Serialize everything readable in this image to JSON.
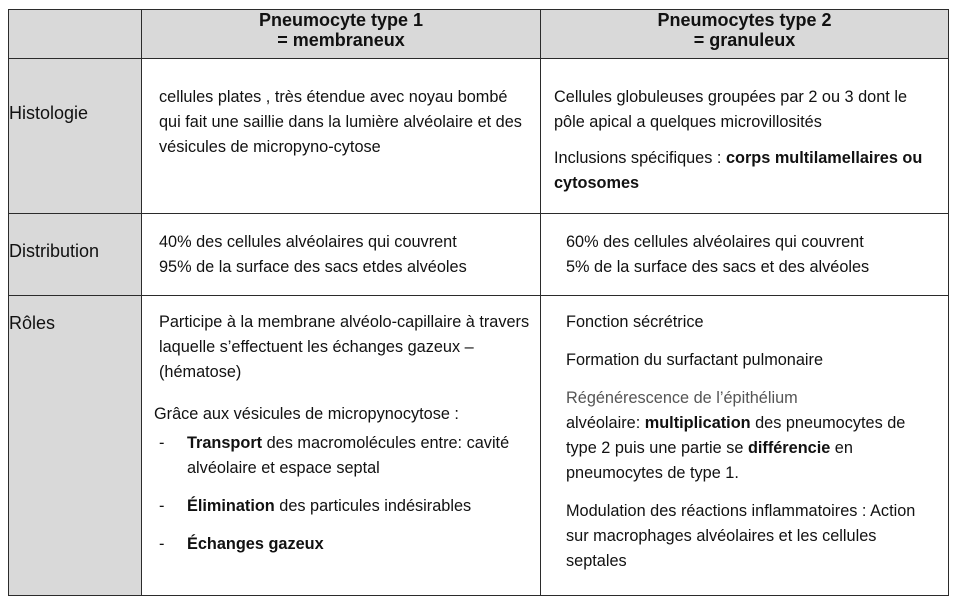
{
  "header": {
    "col1_line1": "Pneumocyte type 1",
    "col1_line2": "= membraneux",
    "col2_line1": "Pneumocytes type 2",
    "col2_line2": "= granuleux"
  },
  "rows": {
    "histologie": {
      "label": "Histologie",
      "type1": "cellules plates , très étendue avec noyau bombé qui fait une saillie dans la  lumière alvéolaire et des vésicules de micropyno-cytose",
      "type2_p1": "Cellules globuleuses groupées par 2 ou 3 dont le pôle apical a quelques microvillosités",
      "type2_p2_text": "Inclusions spécifiques : ",
      "type2_p2_bold": "corps multilamellaires ou cytosomes"
    },
    "distribution": {
      "label": "Distribution",
      "type1_l1": "40% des cellules alvéolaires qui couvrent",
      "type1_l2": "95% de la surface des sacs etdes alvéoles",
      "type2_l1": "60% des cellules alvéolaires qui couvrent",
      "type2_l2": "5% de la surface des sacs et des alvéoles"
    },
    "roles": {
      "label": "Rôles",
      "type1_intro": "Participe à la membrane alvéolo-capillaire à travers laquelle s’effectuent les échanges gazeux – (hématose)",
      "type1_lead": "Grâce aux vésicules de micropynocytose :",
      "type1_bullets": [
        {
          "dash": "-",
          "bold": "Transport",
          "rest": " des macromolécules entre: cavité alvéolaire et espace septal"
        },
        {
          "dash": "-",
          "bold": "Élimination",
          "rest": " des particules indésirables"
        },
        {
          "dash": "-",
          "bold": "Échanges gazeux",
          "rest": ""
        }
      ],
      "type2_p1": "Fonction sécrétrice",
      "type2_p2": "Formation du surfactant pulmonaire",
      "type2_p3_a": "Régénérescence de l’épithélium",
      "type2_p3_b": "alvéolaire: ",
      "type2_p3_bold1": "multiplication",
      "type2_p3_c": " des pneumocytes de type 2 puis une partie se ",
      "type2_p3_bold2": "différencie",
      "type2_p3_d": " en pneumocytes de type 1.",
      "type2_p4": "Modulation des réactions inflammatoires : Action sur macrophages alvéolaires et les cellules septales"
    }
  }
}
